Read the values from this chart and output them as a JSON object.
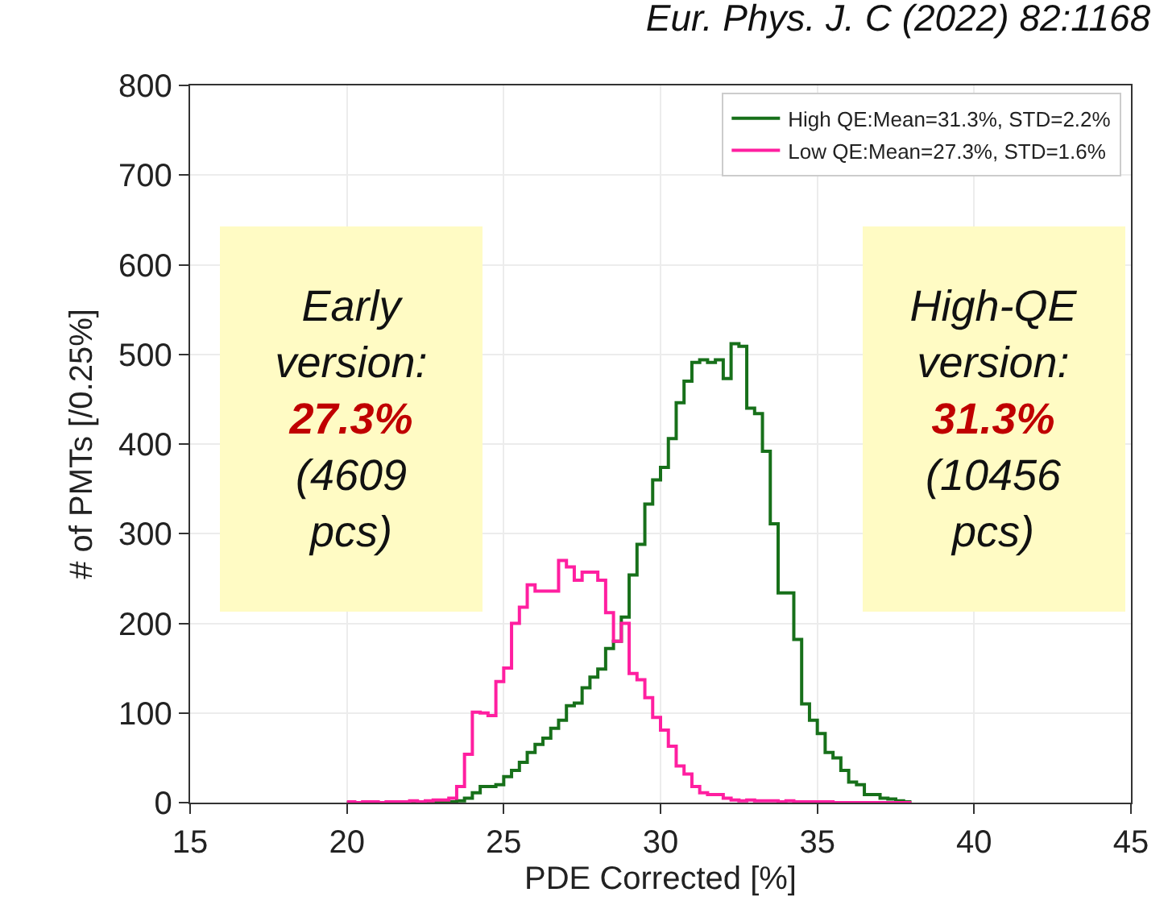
{
  "chart_data": {
    "type": "histogram",
    "title": "Eur. Phys. J. C (2022) 82:1168",
    "xlabel": "PDE Corrected [%]",
    "ylabel": "# of PMTs [/0.25%]",
    "bins": [
      20.0,
      20.25,
      20.5,
      20.75,
      21.0,
      21.25,
      21.5,
      21.75,
      22.0,
      22.25,
      22.5,
      22.75,
      23.0,
      23.25,
      23.5,
      23.75,
      24.0,
      24.25,
      24.5,
      24.75,
      25.0,
      25.25,
      25.5,
      25.75,
      26.0,
      26.25,
      26.5,
      26.75,
      27.0,
      27.25,
      27.5,
      27.75,
      28.0,
      28.25,
      28.5,
      28.75,
      29.0,
      29.25,
      29.5,
      29.75,
      30.0,
      30.25,
      30.5,
      30.75,
      31.0,
      31.25,
      31.5,
      31.75,
      32.0,
      32.25,
      32.5,
      32.75,
      33.0,
      33.25,
      33.5,
      33.75,
      34.0,
      34.25,
      34.5,
      34.75,
      35.0,
      35.25,
      35.5,
      35.75,
      36.0,
      36.25,
      36.5,
      36.75,
      37.0,
      37.25,
      37.5,
      37.75,
      38.0
    ],
    "series": [
      {
        "name": "High QE:Mean=31.3%, STD=2.2%",
        "color": "#17701a",
        "values": [
          0,
          0,
          0,
          0,
          0,
          0,
          0,
          0,
          0,
          0,
          0,
          0,
          0,
          1,
          2,
          5,
          11,
          18,
          18,
          20,
          29,
          36,
          45,
          56,
          65,
          72,
          83,
          92,
          108,
          111,
          128,
          140,
          149,
          172,
          180,
          207,
          254,
          288,
          333,
          360,
          374,
          406,
          446,
          470,
          491,
          494,
          491,
          494,
          473,
          512,
          509,
          440,
          434,
          392,
          311,
          234,
          234,
          182,
          110,
          92,
          77,
          56,
          50,
          36,
          23,
          20,
          9,
          9,
          5,
          4,
          2,
          1
        ]
      },
      {
        "name": "Low QE:Mean=27.3%, STD=1.6%",
        "color": "#ff1fa0",
        "values": [
          1,
          0,
          1,
          1,
          0,
          1,
          1,
          1,
          2,
          1,
          2,
          3,
          3,
          5,
          18,
          54,
          101,
          100,
          97,
          135,
          150,
          200,
          218,
          243,
          236,
          236,
          236,
          270,
          263,
          248,
          257,
          257,
          248,
          212,
          180,
          200,
          144,
          137,
          117,
          95,
          81,
          63,
          41,
          32,
          18,
          11,
          9,
          9,
          5,
          3,
          2,
          3,
          2,
          2,
          2,
          1,
          2,
          1,
          1,
          1,
          1,
          1,
          0,
          0,
          0,
          0,
          0,
          0,
          0,
          0,
          0,
          0
        ]
      }
    ],
    "xlim": [
      15,
      45
    ],
    "xticks": [
      15,
      20,
      25,
      30,
      35,
      40,
      45
    ],
    "ylim": [
      0,
      800
    ],
    "yticks": [
      0,
      100,
      200,
      300,
      400,
      500,
      600,
      700,
      800
    ],
    "grid": true,
    "legend": "top right",
    "annotations": [
      "Early\nversion:\n27.3%\n(4609\npcs)",
      "High-QE\nversion:\n31.3%\n(10456\npcs)"
    ]
  }
}
